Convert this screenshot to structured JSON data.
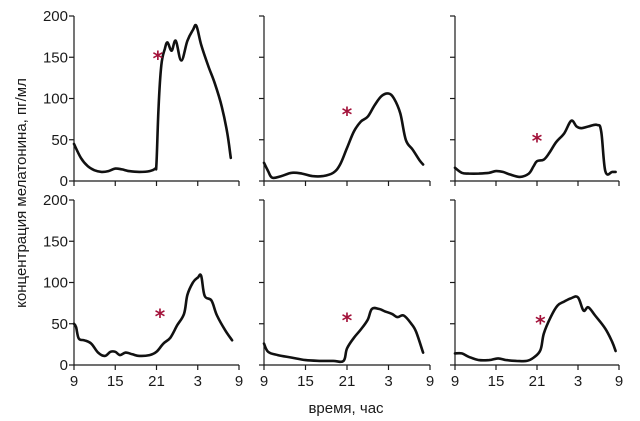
{
  "chart_data": {
    "type": "line",
    "layout": "grid 2 rows x 3 columns, shared axes",
    "xlabel": "время, час",
    "ylabel": "концентрация мелатонина, пг/мл",
    "x_ticks": [
      "9",
      "15",
      "21",
      "3",
      "9"
    ],
    "x_tick_hours": [
      9,
      15,
      21,
      27,
      33
    ],
    "xlim": [
      9,
      33
    ],
    "y_ticks": [
      "0",
      "50",
      "100",
      "150",
      "200"
    ],
    "ylim": [
      0,
      200
    ],
    "grid": false,
    "marker_symbol": "*",
    "marker_color": "#a3123a",
    "line_color": "#111111",
    "panels": [
      {
        "marker": {
          "x": 21.2,
          "y": 150
        },
        "series": [
          {
            "x": 9.0,
            "y": 45
          },
          {
            "x": 10.0,
            "y": 28
          },
          {
            "x": 11.0,
            "y": 18
          },
          {
            "x": 12.0,
            "y": 13
          },
          {
            "x": 13.0,
            "y": 11
          },
          {
            "x": 14.0,
            "y": 12
          },
          {
            "x": 15.0,
            "y": 15
          },
          {
            "x": 16.0,
            "y": 14
          },
          {
            "x": 17.0,
            "y": 12
          },
          {
            "x": 18.5,
            "y": 11
          },
          {
            "x": 20.0,
            "y": 12
          },
          {
            "x": 20.8,
            "y": 15
          },
          {
            "x": 21.0,
            "y": 22
          },
          {
            "x": 21.3,
            "y": 90
          },
          {
            "x": 21.7,
            "y": 140
          },
          {
            "x": 22.2,
            "y": 160
          },
          {
            "x": 22.6,
            "y": 168
          },
          {
            "x": 23.2,
            "y": 158
          },
          {
            "x": 23.8,
            "y": 170
          },
          {
            "x": 24.6,
            "y": 146
          },
          {
            "x": 25.5,
            "y": 170
          },
          {
            "x": 26.3,
            "y": 183
          },
          {
            "x": 26.8,
            "y": 188
          },
          {
            "x": 27.5,
            "y": 165
          },
          {
            "x": 28.5,
            "y": 140
          },
          {
            "x": 29.5,
            "y": 118
          },
          {
            "x": 30.5,
            "y": 90
          },
          {
            "x": 31.3,
            "y": 58
          },
          {
            "x": 31.8,
            "y": 28
          }
        ]
      },
      {
        "marker": {
          "x": 21.0,
          "y": 82
        },
        "series": [
          {
            "x": 9.0,
            "y": 22
          },
          {
            "x": 9.6,
            "y": 12
          },
          {
            "x": 10.2,
            "y": 4
          },
          {
            "x": 11.5,
            "y": 6
          },
          {
            "x": 13.0,
            "y": 10
          },
          {
            "x": 14.5,
            "y": 9
          },
          {
            "x": 16.0,
            "y": 6
          },
          {
            "x": 17.5,
            "y": 6
          },
          {
            "x": 19.0,
            "y": 10
          },
          {
            "x": 20.0,
            "y": 20
          },
          {
            "x": 21.0,
            "y": 40
          },
          {
            "x": 22.0,
            "y": 60
          },
          {
            "x": 23.0,
            "y": 72
          },
          {
            "x": 24.0,
            "y": 78
          },
          {
            "x": 25.0,
            "y": 92
          },
          {
            "x": 26.0,
            "y": 103
          },
          {
            "x": 27.0,
            "y": 106
          },
          {
            "x": 27.8,
            "y": 100
          },
          {
            "x": 28.7,
            "y": 82
          },
          {
            "x": 29.5,
            "y": 50
          },
          {
            "x": 30.5,
            "y": 38
          },
          {
            "x": 31.5,
            "y": 25
          },
          {
            "x": 32.0,
            "y": 20
          }
        ]
      },
      {
        "marker": {
          "x": 21.0,
          "y": 50
        },
        "series": [
          {
            "x": 9.0,
            "y": 16
          },
          {
            "x": 10.0,
            "y": 10
          },
          {
            "x": 11.0,
            "y": 9
          },
          {
            "x": 12.5,
            "y": 9
          },
          {
            "x": 14.0,
            "y": 10
          },
          {
            "x": 15.0,
            "y": 12
          },
          {
            "x": 16.0,
            "y": 11
          },
          {
            "x": 17.0,
            "y": 8
          },
          {
            "x": 18.5,
            "y": 5
          },
          {
            "x": 19.8,
            "y": 9
          },
          {
            "x": 20.5,
            "y": 18
          },
          {
            "x": 21.0,
            "y": 24
          },
          {
            "x": 22.0,
            "y": 26
          },
          {
            "x": 22.8,
            "y": 34
          },
          {
            "x": 23.8,
            "y": 47
          },
          {
            "x": 25.0,
            "y": 58
          },
          {
            "x": 26.0,
            "y": 73
          },
          {
            "x": 26.8,
            "y": 66
          },
          {
            "x": 27.5,
            "y": 64
          },
          {
            "x": 28.5,
            "y": 66
          },
          {
            "x": 29.8,
            "y": 68
          },
          {
            "x": 30.4,
            "y": 60
          },
          {
            "x": 31.0,
            "y": 12
          },
          {
            "x": 32.0,
            "y": 11
          },
          {
            "x": 32.5,
            "y": 11
          }
        ]
      },
      {
        "marker": {
          "x": 21.5,
          "y": 60
        },
        "series": [
          {
            "x": 9.0,
            "y": 50
          },
          {
            "x": 9.3,
            "y": 46
          },
          {
            "x": 9.7,
            "y": 32
          },
          {
            "x": 10.5,
            "y": 30
          },
          {
            "x": 11.5,
            "y": 26
          },
          {
            "x": 12.5,
            "y": 15
          },
          {
            "x": 13.5,
            "y": 11
          },
          {
            "x": 14.3,
            "y": 16
          },
          {
            "x": 15.0,
            "y": 16
          },
          {
            "x": 15.7,
            "y": 12
          },
          {
            "x": 16.5,
            "y": 15
          },
          {
            "x": 17.5,
            "y": 13
          },
          {
            "x": 18.5,
            "y": 11
          },
          {
            "x": 20.0,
            "y": 12
          },
          {
            "x": 21.0,
            "y": 16
          },
          {
            "x": 22.0,
            "y": 26
          },
          {
            "x": 23.0,
            "y": 33
          },
          {
            "x": 24.0,
            "y": 48
          },
          {
            "x": 25.0,
            "y": 62
          },
          {
            "x": 25.5,
            "y": 85
          },
          {
            "x": 26.3,
            "y": 100
          },
          {
            "x": 27.0,
            "y": 106
          },
          {
            "x": 27.5,
            "y": 108
          },
          {
            "x": 28.0,
            "y": 84
          },
          {
            "x": 29.0,
            "y": 78
          },
          {
            "x": 29.8,
            "y": 60
          },
          {
            "x": 31.0,
            "y": 42
          },
          {
            "x": 32.0,
            "y": 30
          }
        ]
      },
      {
        "marker": {
          "x": 21.0,
          "y": 55
        },
        "series": [
          {
            "x": 9.0,
            "y": 26
          },
          {
            "x": 9.6,
            "y": 16
          },
          {
            "x": 11.0,
            "y": 12
          },
          {
            "x": 13.0,
            "y": 9
          },
          {
            "x": 15.0,
            "y": 6
          },
          {
            "x": 17.0,
            "y": 5
          },
          {
            "x": 19.0,
            "y": 5
          },
          {
            "x": 20.5,
            "y": 5
          },
          {
            "x": 21.0,
            "y": 20
          },
          {
            "x": 22.0,
            "y": 33
          },
          {
            "x": 23.0,
            "y": 43
          },
          {
            "x": 24.0,
            "y": 55
          },
          {
            "x": 24.6,
            "y": 68
          },
          {
            "x": 25.6,
            "y": 68
          },
          {
            "x": 26.5,
            "y": 65
          },
          {
            "x": 27.5,
            "y": 62
          },
          {
            "x": 28.3,
            "y": 58
          },
          {
            "x": 29.2,
            "y": 60
          },
          {
            "x": 30.3,
            "y": 50
          },
          {
            "x": 31.0,
            "y": 40
          },
          {
            "x": 32.0,
            "y": 15
          }
        ]
      },
      {
        "marker": {
          "x": 21.5,
          "y": 52
        },
        "series": [
          {
            "x": 9.0,
            "y": 14
          },
          {
            "x": 10.0,
            "y": 14
          },
          {
            "x": 11.0,
            "y": 10
          },
          {
            "x": 12.5,
            "y": 6
          },
          {
            "x": 14.0,
            "y": 6
          },
          {
            "x": 15.3,
            "y": 8
          },
          {
            "x": 16.5,
            "y": 6
          },
          {
            "x": 18.0,
            "y": 5
          },
          {
            "x": 19.5,
            "y": 5
          },
          {
            "x": 20.5,
            "y": 9
          },
          {
            "x": 21.5,
            "y": 18
          },
          {
            "x": 22.0,
            "y": 38
          },
          {
            "x": 23.0,
            "y": 58
          },
          {
            "x": 24.0,
            "y": 72
          },
          {
            "x": 25.0,
            "y": 77
          },
          {
            "x": 26.0,
            "y": 81
          },
          {
            "x": 27.0,
            "y": 82
          },
          {
            "x": 27.8,
            "y": 66
          },
          {
            "x": 28.5,
            "y": 70
          },
          {
            "x": 29.5,
            "y": 60
          },
          {
            "x": 31.0,
            "y": 44
          },
          {
            "x": 32.0,
            "y": 28
          },
          {
            "x": 32.5,
            "y": 17
          }
        ]
      }
    ]
  }
}
